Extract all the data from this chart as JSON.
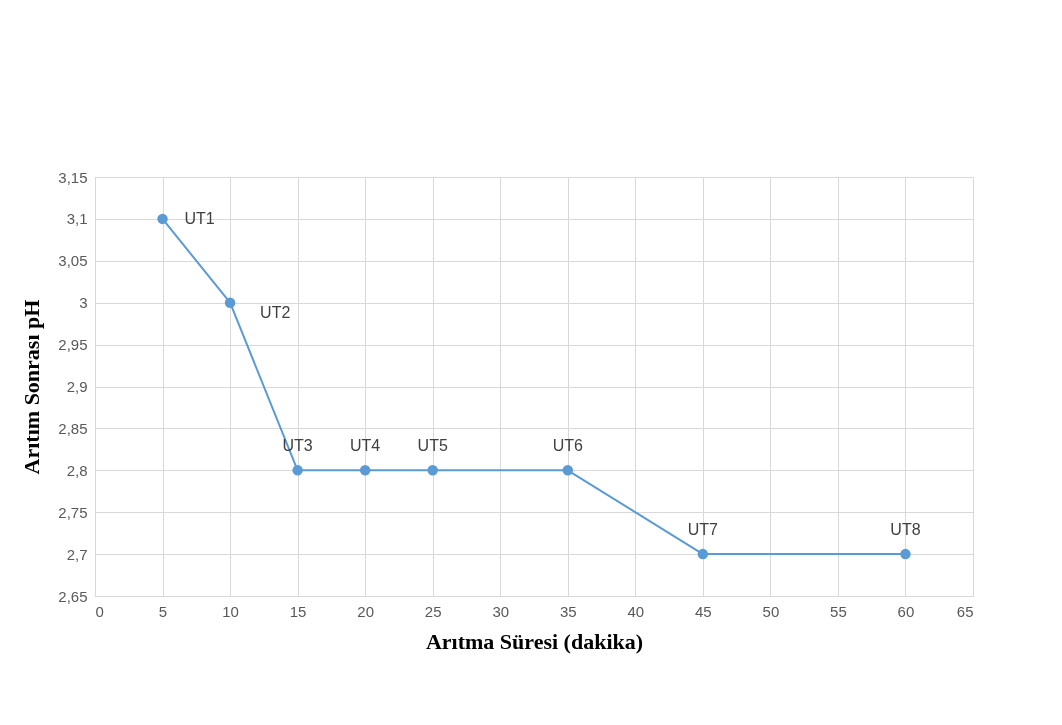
{
  "chart_data": {
    "type": "line",
    "xlabel": "Arıtma Süresi (dakika)",
    "ylabel": "Arıtım Sonrası pH",
    "x": [
      5,
      10,
      15,
      20,
      25,
      35,
      45,
      60
    ],
    "series": [
      {
        "color": "#5b9bd5",
        "values": [
          3.1,
          3.0,
          2.8,
          2.8,
          2.8,
          2.8,
          2.7,
          2.7
        ]
      }
    ],
    "xlim": [
      0,
      65
    ],
    "xticks": [
      0,
      5,
      10,
      15,
      20,
      25,
      30,
      35,
      40,
      45,
      50,
      55,
      60,
      65
    ],
    "ylim": [
      2.65,
      3.15
    ],
    "yticks": [
      {
        "value": 2.65,
        "label": "2,65"
      },
      {
        "value": 2.7,
        "label": "2,7"
      },
      {
        "value": 2.75,
        "label": "2,75"
      },
      {
        "value": 2.8,
        "label": "2,8"
      },
      {
        "value": 2.85,
        "label": "2,85"
      },
      {
        "value": 2.9,
        "label": "2,9"
      },
      {
        "value": 2.95,
        "label": "2,95"
      },
      {
        "value": 3.0,
        "label": "3"
      },
      {
        "value": 3.05,
        "label": "3,05"
      },
      {
        "value": 3.1,
        "label": "3,1"
      },
      {
        "value": 3.15,
        "label": "3,15"
      }
    ],
    "annotations": [
      {
        "text": "UT1",
        "x": 5,
        "y": 3.1
      },
      {
        "text": "UT2",
        "x": 10,
        "y": 3.0
      },
      {
        "text": "UT3",
        "x": 15,
        "y": 2.8
      },
      {
        "text": "UT4",
        "x": 20,
        "y": 2.8
      },
      {
        "text": "UT5",
        "x": 25,
        "y": 2.8
      },
      {
        "text": "UT6",
        "x": 35,
        "y": 2.8
      },
      {
        "text": "UT7",
        "x": 45,
        "y": 2.7
      },
      {
        "text": "UT8",
        "x": 60,
        "y": 2.7
      }
    ],
    "grid": true,
    "marker": "circle",
    "line_style": "solid"
  }
}
